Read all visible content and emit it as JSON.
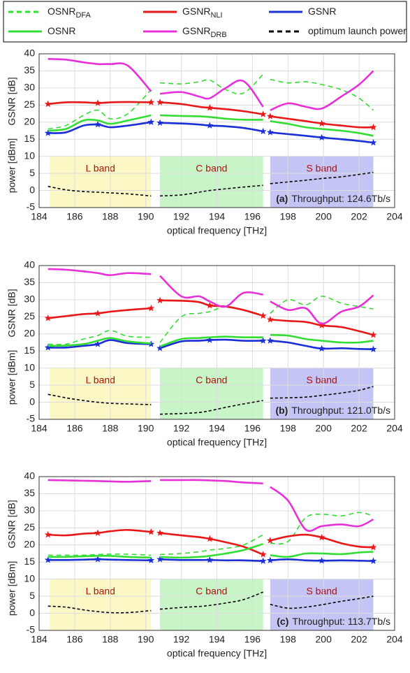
{
  "legend": [
    {
      "name": "OSNR",
      "subscript": "DFA",
      "color": "#33dd33",
      "dashed": true
    },
    {
      "name": "GSNR",
      "subscript": "NLI",
      "color": "#e81818",
      "dashed": false,
      "marker": "star"
    },
    {
      "name": "GSNR",
      "subscript": null,
      "color": "#1a2fd6",
      "dashed": false,
      "marker": "star"
    },
    {
      "name": "OSNR",
      "subscript": null,
      "color": "#33dd33",
      "dashed": false
    },
    {
      "name": "GSNR",
      "subscript": "DRB",
      "color": "#e830d8",
      "dashed": false
    },
    {
      "name": "optimum launch power",
      "subscript": null,
      "color": "#000000",
      "dashed": true
    }
  ],
  "chart_data": [
    {
      "type": "line",
      "xlabel": "optical frequency [THz]",
      "ylabels": [
        "GSNR [dB]",
        "power [dBm]"
      ],
      "annotation": {
        "label": "(a)",
        "text": "Throughput: 124.6Tb/s"
      },
      "xlim": [
        184,
        204
      ],
      "xticks": [
        184,
        186,
        188,
        190,
        192,
        194,
        196,
        198,
        200,
        202,
        204
      ],
      "ylim": [
        -5,
        40
      ],
      "yticks": [
        -5,
        0,
        5,
        10,
        15,
        20,
        25,
        30,
        35,
        40
      ],
      "grid": true,
      "bands": [
        {
          "label": "L band",
          "span": [
            184.6,
            190.3
          ],
          "y_span": [
            -5,
            10
          ],
          "color": "#fbf8c6",
          "text_color": "#b01010"
        },
        {
          "label": "C band",
          "span": [
            190.8,
            196.6
          ],
          "y_span": [
            -5,
            10
          ],
          "color": "#c8f5c8",
          "text_color": "#b01010"
        },
        {
          "label": "S band",
          "span": [
            197.0,
            202.8
          ],
          "y_span": [
            -5,
            10
          ],
          "color": "#c4c4f5",
          "text_color": "#b01010"
        }
      ],
      "x": [
        184.5,
        185.5,
        186.5,
        187.3,
        188,
        189,
        190.3,
        null,
        190.8,
        192,
        193,
        193.6,
        194.5,
        195.5,
        196.6,
        null,
        197,
        198,
        199,
        199.9,
        201,
        202,
        202.8
      ],
      "series": [
        {
          "values": [
            18,
            19,
            22,
            23.5,
            21,
            22.5,
            29.5,
            null,
            31.5,
            31.2,
            31.8,
            32.3,
            29.5,
            28.5,
            34,
            null,
            32.5,
            31.5,
            31.8,
            31,
            29.5,
            27,
            23.5
          ]
        },
        {
          "values": [
            25.3,
            25.8,
            25.8,
            25.6,
            25.8,
            25.9,
            25.8,
            null,
            25.8,
            25.3,
            24.5,
            24.2,
            23.8,
            23.2,
            22.3,
            null,
            21.7,
            21,
            20.3,
            19.6,
            19,
            18.5,
            18.5
          ]
        },
        {
          "values": [
            16.8,
            17,
            19,
            19.3,
            18.5,
            19,
            20,
            null,
            19.8,
            19.6,
            19.3,
            19,
            18.8,
            18.3,
            17.3,
            null,
            17,
            16.5,
            16,
            15.5,
            15,
            14.5,
            14
          ]
        },
        {
          "values": [
            17.5,
            18,
            20.5,
            20.5,
            19.5,
            20.5,
            22,
            null,
            22,
            21.8,
            21.7,
            21.5,
            21,
            20.7,
            20.7,
            null,
            20.3,
            19.5,
            18.5,
            18,
            17.5,
            16.8,
            16
          ]
        },
        {
          "values": [
            38.5,
            38.3,
            37.5,
            37,
            37,
            36.5,
            29,
            null,
            28.3,
            28.8,
            27.5,
            27,
            30,
            32,
            24.5,
            null,
            23.5,
            25.5,
            24.5,
            24,
            27.5,
            31,
            35
          ]
        },
        {
          "values": [
            1.2,
            0.2,
            -0.3,
            -0.5,
            -0.7,
            -1,
            -1.6,
            null,
            -1.6,
            -1.3,
            -0.5,
            0,
            0.5,
            1,
            1.5,
            null,
            2,
            2.5,
            3,
            3.5,
            4,
            4.7,
            5.3
          ]
        }
      ]
    },
    {
      "type": "line",
      "xlabel": "optical frequency [THz]",
      "ylabels": [
        "GSNR [dB]",
        "power [dBm]"
      ],
      "annotation": {
        "label": "(b)",
        "text": "Throughput: 121.0Tb/s"
      },
      "xlim": [
        184,
        204
      ],
      "xticks": [
        184,
        186,
        188,
        190,
        192,
        194,
        196,
        198,
        200,
        202,
        204
      ],
      "ylim": [
        -5,
        40
      ],
      "yticks": [
        -5,
        0,
        5,
        10,
        15,
        20,
        25,
        30,
        35,
        40
      ],
      "grid": true,
      "bands": [
        {
          "label": "L band",
          "span": [
            184.6,
            190.3
          ],
          "y_span": [
            -5,
            10
          ],
          "color": "#fbf8c6",
          "text_color": "#b01010"
        },
        {
          "label": "C band",
          "span": [
            190.8,
            196.6
          ],
          "y_span": [
            -5,
            10
          ],
          "color": "#c8f5c8",
          "text_color": "#b01010"
        },
        {
          "label": "S band",
          "span": [
            197.0,
            202.8
          ],
          "y_span": [
            -5,
            10
          ],
          "color": "#c4c4f5",
          "text_color": "#b01010"
        }
      ],
      "x": [
        184.5,
        185.5,
        186.5,
        187.3,
        188,
        189,
        190.3,
        null,
        190.8,
        192,
        193,
        193.6,
        194.5,
        195.5,
        196.6,
        null,
        197,
        198,
        199,
        199.9,
        201,
        202,
        202.8
      ],
      "series": [
        {
          "values": [
            17,
            17,
            18.5,
            19.5,
            21,
            19.3,
            19,
            null,
            17.5,
            25,
            26,
            26.5,
            28,
            27,
            25.5,
            null,
            26,
            30,
            28.5,
            31,
            29,
            28,
            27.3
          ]
        },
        {
          "values": [
            24.6,
            25.2,
            25.8,
            26,
            26.5,
            27,
            27.5,
            null,
            29.8,
            29.7,
            29.3,
            28.3,
            28,
            27,
            25.3,
            null,
            24.2,
            23.8,
            23.5,
            22.5,
            22,
            20.8,
            19.7
          ]
        },
        {
          "values": [
            16,
            16,
            16.5,
            17,
            18.2,
            17.3,
            17,
            null,
            15.8,
            17.8,
            18,
            18.2,
            18.3,
            18,
            18,
            null,
            18,
            17.5,
            16.5,
            15.7,
            15.8,
            15.6,
            15.5
          ]
        },
        {
          "values": [
            16.5,
            16.6,
            17,
            18,
            18.8,
            17.8,
            17.2,
            null,
            16.3,
            18.5,
            18.8,
            19,
            19.2,
            19,
            19,
            null,
            19.7,
            19.5,
            18.5,
            18,
            17.5,
            17.5,
            18
          ]
        },
        {
          "values": [
            39,
            38.8,
            38.3,
            37.8,
            37.2,
            37.8,
            37.5,
            null,
            37,
            31,
            31,
            29.5,
            28,
            32,
            31.5,
            null,
            29.5,
            27,
            27.5,
            23,
            26.5,
            28,
            31.3
          ]
        },
        {
          "values": [
            2.3,
            1.3,
            0.5,
            0,
            -0.3,
            -0.5,
            -0.7,
            null,
            -3.5,
            -3.3,
            -3,
            -2.5,
            -1.5,
            -0.5,
            0.5,
            null,
            1.2,
            1.3,
            1.5,
            2,
            2.7,
            3.5,
            4.6
          ]
        }
      ]
    },
    {
      "type": "line",
      "xlabel": "optical frequency [THz]",
      "ylabels": [
        "GSNR [dB]",
        "power [dBm]"
      ],
      "annotation": {
        "label": "(c)",
        "text": "Throughput: 113.7Tb/s"
      },
      "xlim": [
        184,
        204
      ],
      "xticks": [
        184,
        186,
        188,
        190,
        192,
        194,
        196,
        198,
        200,
        202,
        204
      ],
      "ylim": [
        -5,
        40
      ],
      "yticks": [
        -5,
        0,
        5,
        10,
        15,
        20,
        25,
        30,
        35,
        40
      ],
      "grid": true,
      "bands": [
        {
          "label": "L band",
          "span": [
            184.6,
            190.3
          ],
          "y_span": [
            -5,
            10
          ],
          "color": "#fbf8c6",
          "text_color": "#b01010"
        },
        {
          "label": "C band",
          "span": [
            190.8,
            196.6
          ],
          "y_span": [
            -5,
            10
          ],
          "color": "#c8f5c8",
          "text_color": "#b01010"
        },
        {
          "label": "S band",
          "span": [
            197.0,
            202.8
          ],
          "y_span": [
            -5,
            10
          ],
          "color": "#c4c4f5",
          "text_color": "#b01010"
        }
      ],
      "x": [
        184.5,
        185.5,
        186.5,
        187.3,
        188,
        189,
        190.3,
        null,
        190.8,
        192,
        193,
        193.6,
        194.5,
        195.5,
        196.6,
        null,
        197,
        198,
        199,
        199.9,
        201,
        202,
        202.8
      ],
      "series": [
        {
          "values": [
            17,
            17,
            17,
            17.2,
            17.3,
            17.3,
            17,
            null,
            17.2,
            17.5,
            18,
            18.5,
            19,
            20,
            23,
            null,
            20.5,
            21,
            28,
            29,
            28.5,
            29.5,
            28.5
          ]
        },
        {
          "values": [
            23,
            22.8,
            23.3,
            23.5,
            24,
            24.4,
            23.8,
            null,
            23.5,
            22.8,
            22.3,
            21.8,
            20.8,
            19.5,
            17.2,
            null,
            21.3,
            22.5,
            23,
            22.2,
            20.5,
            19.5,
            19.3
          ]
        },
        {
          "values": [
            15.6,
            15.6,
            15.7,
            15.8,
            15.7,
            15.6,
            15.5,
            null,
            15.8,
            15.6,
            15.6,
            15.6,
            15.5,
            15.5,
            15.3,
            null,
            15.5,
            15.8,
            15.5,
            15.4,
            15.5,
            15.4,
            15.3
          ]
        },
        {
          "values": [
            16.5,
            16.5,
            16.7,
            16.8,
            16.8,
            16.5,
            16.3,
            null,
            16.5,
            16.3,
            16.5,
            16.8,
            17.5,
            18.5,
            20.3,
            null,
            17,
            16.5,
            17.5,
            17.5,
            17.3,
            17.8,
            18
          ]
        },
        {
          "values": [
            39,
            38.9,
            38.8,
            38.7,
            38.6,
            38.5,
            38.7,
            null,
            39,
            39,
            39,
            38.9,
            38.7,
            38.3,
            38,
            null,
            37,
            33,
            24.5,
            25.5,
            26,
            25.5,
            27.5
          ]
        },
        {
          "values": [
            2.1,
            1.8,
            1,
            0.5,
            0.2,
            0.2,
            0.8,
            null,
            1.2,
            1.7,
            2,
            2.3,
            3,
            4,
            6.2,
            null,
            2.6,
            1.5,
            1.8,
            2.5,
            3.5,
            4.3,
            5
          ]
        }
      ]
    }
  ]
}
